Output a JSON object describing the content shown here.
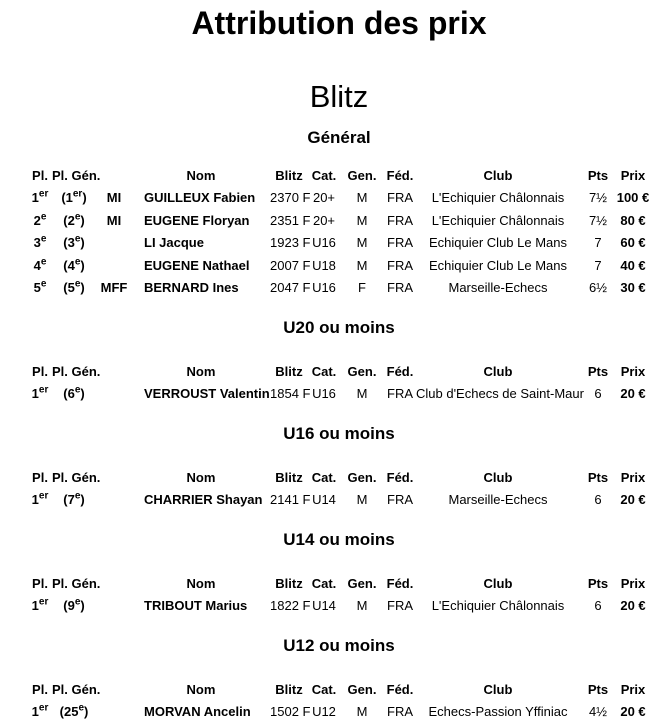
{
  "page": {
    "title": "Attribution des prix",
    "subtitle": "Blitz"
  },
  "table_headers": [
    "Pl.",
    "Pl. Gén.",
    "",
    "Nom",
    "Blitz",
    "Cat.",
    "Gen.",
    "Féd.",
    "Club",
    "Pts",
    "Prix"
  ],
  "sections": [
    {
      "title": "Général",
      "rows": [
        {
          "pl": "1er",
          "pl_gen": "(1er)",
          "title": "MI",
          "nom": "GUILLEUX Fabien",
          "blitz": "2370 F",
          "cat": "20+",
          "gen": "M",
          "fed": "FRA",
          "club": "L'Echiquier Châlonnais",
          "pts": "7½",
          "prix": "100 €"
        },
        {
          "pl": "2e",
          "pl_gen": "(2e)",
          "title": "MI",
          "nom": "EUGENE Floryan",
          "blitz": "2351 F",
          "cat": "20+",
          "gen": "M",
          "fed": "FRA",
          "club": "L'Echiquier Châlonnais",
          "pts": "7½",
          "prix": "80 €"
        },
        {
          "pl": "3e",
          "pl_gen": "(3e)",
          "title": "",
          "nom": "LI Jacque",
          "blitz": "1923 F",
          "cat": "U16",
          "gen": "M",
          "fed": "FRA",
          "club": "Echiquier Club Le Mans",
          "pts": "7",
          "prix": "60 €"
        },
        {
          "pl": "4e",
          "pl_gen": "(4e)",
          "title": "",
          "nom": "EUGENE Nathael",
          "blitz": "2007 F",
          "cat": "U18",
          "gen": "M",
          "fed": "FRA",
          "club": "Echiquier Club Le Mans",
          "pts": "7",
          "prix": "40 €"
        },
        {
          "pl": "5e",
          "pl_gen": "(5e)",
          "title": "MFF",
          "nom": "BERNARD Ines",
          "blitz": "2047 F",
          "cat": "U16",
          "gen": "F",
          "fed": "FRA",
          "club": "Marseille-Echecs",
          "pts": "6½",
          "prix": "30 €"
        }
      ]
    },
    {
      "title": "U20 ou moins",
      "rows": [
        {
          "pl": "1er",
          "pl_gen": "(6e)",
          "title": "",
          "nom": "VERROUST Valentin",
          "blitz": "1854 F",
          "cat": "U16",
          "gen": "M",
          "fed": "FRA",
          "club": "Club d'Echecs de Saint-Maur",
          "pts": "6",
          "prix": "20 €"
        }
      ]
    },
    {
      "title": "U16 ou moins",
      "rows": [
        {
          "pl": "1er",
          "pl_gen": "(7e)",
          "title": "",
          "nom": "CHARRIER Shayan",
          "blitz": "2141 F",
          "cat": "U14",
          "gen": "M",
          "fed": "FRA",
          "club": "Marseille-Echecs",
          "pts": "6",
          "prix": "20 €"
        }
      ]
    },
    {
      "title": "U14 ou moins",
      "rows": [
        {
          "pl": "1er",
          "pl_gen": "(9e)",
          "title": "",
          "nom": "TRIBOUT Marius",
          "blitz": "1822 F",
          "cat": "U14",
          "gen": "M",
          "fed": "FRA",
          "club": "L'Echiquier Châlonnais",
          "pts": "6",
          "prix": "20 €"
        }
      ]
    },
    {
      "title": "U12 ou moins",
      "rows": [
        {
          "pl": "1er",
          "pl_gen": "(25e)",
          "title": "",
          "nom": "MORVAN Ancelin",
          "blitz": "1502 F",
          "cat": "U12",
          "gen": "M",
          "fed": "FRA",
          "club": "Echecs-Passion Yffiniac",
          "pts": "4½",
          "prix": "20 €"
        }
      ]
    }
  ]
}
